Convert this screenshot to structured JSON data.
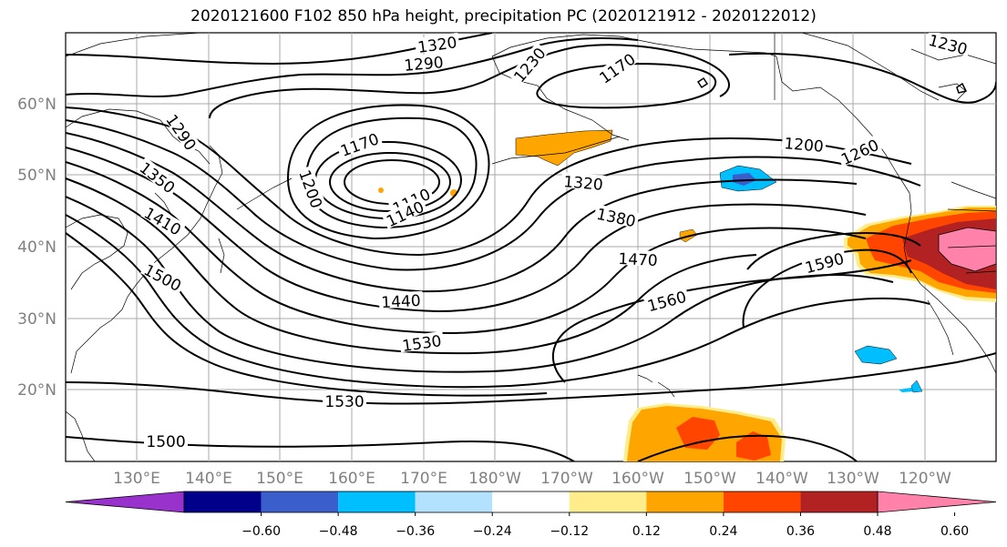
{
  "title": "2020121600 F102 850 hPa height, precipitation PC (2020121912 - 2020122012)",
  "map": {
    "lat_labels": [
      "60°N",
      "50°N",
      "40°N",
      "30°N",
      "20°N"
    ],
    "lon_labels": [
      "130°E",
      "140°E",
      "150°E",
      "160°E",
      "170°E",
      "180°W",
      "170°W",
      "160°W",
      "150°W",
      "140°W",
      "130°W",
      "120°W"
    ],
    "contour_labels": [
      "1320",
      "1290",
      "1230",
      "1170",
      "1290",
      "1350",
      "1410",
      "1500",
      "1170",
      "1200",
      "1110",
      "1140",
      "1320",
      "1380",
      "1470",
      "1440",
      "1530",
      "1560",
      "1590",
      "1200",
      "1260",
      "1530",
      "1500",
      "1230"
    ],
    "label_color": "#808080"
  },
  "colorbar": {
    "tick_labels": [
      "−0.60",
      "−0.48",
      "−0.36",
      "−0.24",
      "−0.12",
      "0.12",
      "0.24",
      "0.36",
      "0.48",
      "0.60"
    ],
    "colors": [
      "#9932cc",
      "#00008b",
      "#3a5fcd",
      "#00bfff",
      "#b2e2ff",
      "#ffffff",
      "#ffec8b",
      "#ffa500",
      "#ff4500",
      "#b22222",
      "#ff82ab"
    ]
  }
}
